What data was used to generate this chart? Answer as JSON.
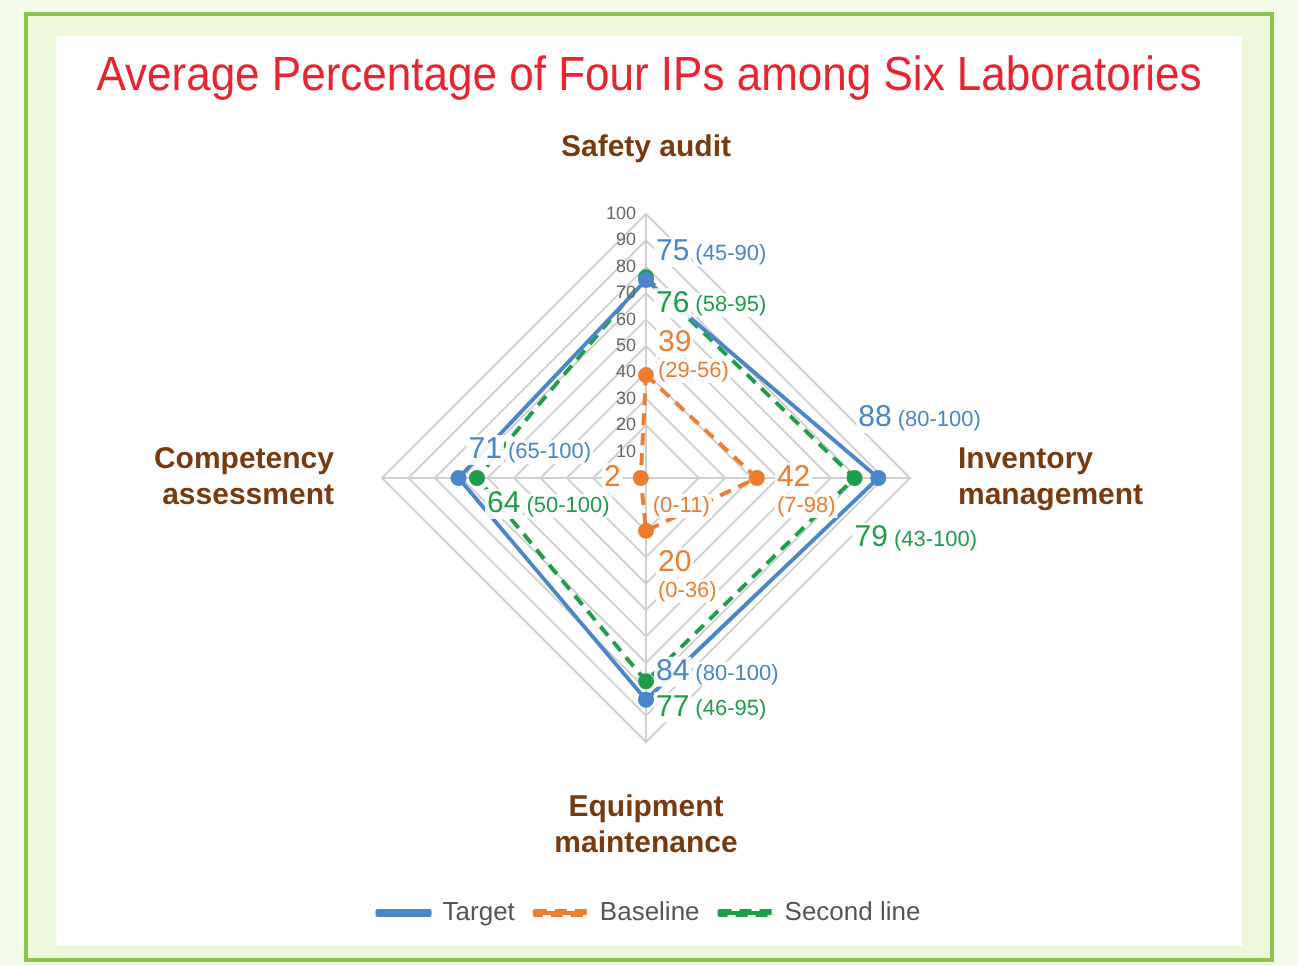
{
  "chart_data": {
    "type": "radar",
    "title": "Average Percentage of Four IPs among Six Laboratories",
    "categories": [
      "Safety audit",
      "Inventory management",
      "Equipment maintenance",
      "Competency assessment"
    ],
    "series": [
      {
        "name": "Target",
        "color": "#4a86c8",
        "values": [
          75,
          88,
          84,
          71
        ],
        "line_style": "solid",
        "value_labels": [
          "75 (45-90)",
          "88 (80-100)",
          "84 (80-100)",
          "71 (65-100)"
        ]
      },
      {
        "name": "Baseline",
        "color": "#ed7d31",
        "values": [
          39,
          42,
          20,
          2
        ],
        "line_style": "dashed",
        "value_labels": [
          "39 (29-56)",
          "42 (7-98)",
          "20 (0-36)",
          "2 (0-11)"
        ]
      },
      {
        "name": "Second line",
        "color": "#1e9e4a",
        "values": [
          76,
          79,
          77,
          64
        ],
        "line_style": "dashed",
        "value_labels": [
          "76 (58-95)",
          "79 (43-100)",
          "77 (46-95)",
          "64 (50-100)"
        ]
      }
    ],
    "ylim": [
      0,
      100
    ],
    "yticks": [
      10,
      20,
      30,
      40,
      50,
      60,
      70,
      80,
      90,
      100
    ],
    "grid": true,
    "legend": "bottom",
    "marker": "circle"
  }
}
